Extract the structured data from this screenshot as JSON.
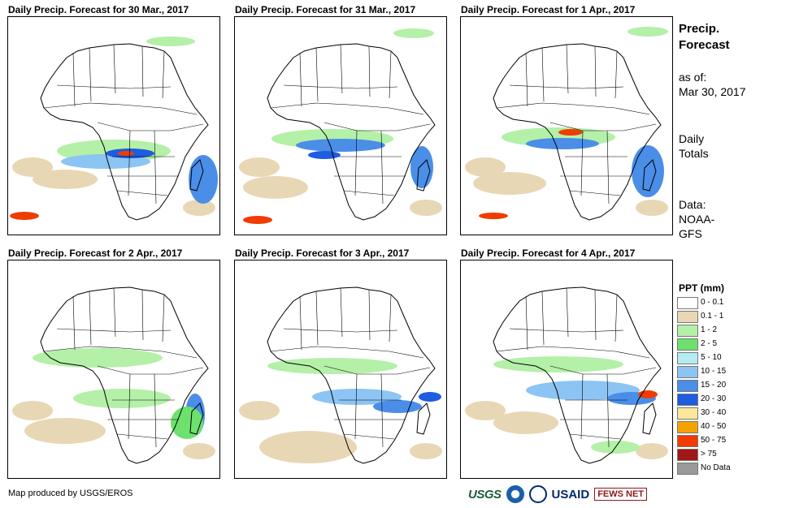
{
  "panels": [
    {
      "title": "Daily Precip. Forecast for 30 Mar., 2017"
    },
    {
      "title": "Daily Precip. Forecast for 31 Mar., 2017"
    },
    {
      "title": "Daily Precip. Forecast for 1 Apr., 2017"
    },
    {
      "title": "Daily Precip. Forecast for 2 Apr., 2017"
    },
    {
      "title": "Daily Precip. Forecast for 3 Apr., 2017"
    },
    {
      "title": "Daily Precip. Forecast for 4 Apr., 2017"
    }
  ],
  "sidebar": {
    "title_line1": "Precip.",
    "title_line2": "Forecast",
    "asof_label": "as of:",
    "asof_date": "Mar 30, 2017",
    "totals_line1": "Daily",
    "totals_line2": "Totals",
    "data_line1": "Data:",
    "data_line2": "NOAA-",
    "data_line3": "GFS"
  },
  "legend": {
    "title": "PPT (mm)",
    "items": [
      {
        "label": "0 - 0.1",
        "color": "#ffffff"
      },
      {
        "label": "0.1 - 1",
        "color": "#e8d7b4"
      },
      {
        "label": "1 - 2",
        "color": "#b4f0a8"
      },
      {
        "label": "2 - 5",
        "color": "#6ee06e"
      },
      {
        "label": "5 - 10",
        "color": "#b4ecf4"
      },
      {
        "label": "10 - 15",
        "color": "#8cc4f4"
      },
      {
        "label": "15 - 20",
        "color": "#4a8ee8"
      },
      {
        "label": "20 - 30",
        "color": "#1e5ce0"
      },
      {
        "label": "30 - 40",
        "color": "#fbe89a"
      },
      {
        "label": "40 - 50",
        "color": "#f5a300"
      },
      {
        "label": "50 - 75",
        "color": "#f03c00"
      },
      {
        "label": "> 75",
        "color": "#a01818"
      },
      {
        "label": "No Data",
        "color": "#9a9a9a"
      }
    ]
  },
  "footer": {
    "credit": "Map produced by USGS/EROS",
    "logo_usgs": "USGS",
    "logo_usaid": "USAID",
    "logo_fews": "FEWS NET"
  }
}
